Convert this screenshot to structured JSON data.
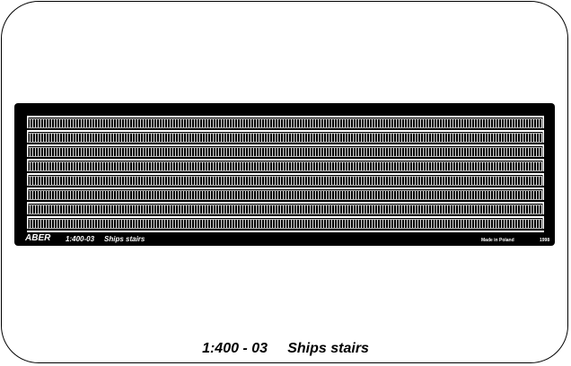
{
  "fret": {
    "brand": "ABER",
    "code": "1:400-03",
    "name": "Ships stairs",
    "made_in": "Made in Poland",
    "year": "1998",
    "ladder_count": 8
  },
  "caption": {
    "code": "1:400 - 03",
    "title": "Ships stairs"
  },
  "colors": {
    "fret": "#000000",
    "metal": "#ffffff",
    "background": "#ffffff"
  }
}
